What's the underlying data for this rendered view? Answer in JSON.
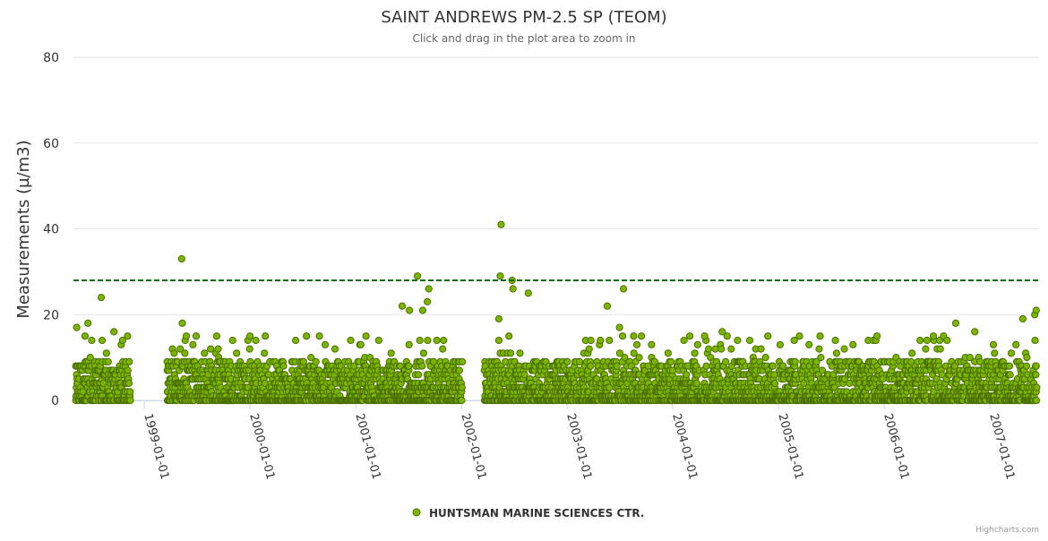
{
  "chart_data": {
    "type": "scatter",
    "title": "SAINT ANDREWS PM-2.5 SP (TEOM)",
    "subtitle": "Click and drag in the plot area to zoom in",
    "ylabel": "Measurements (µ/m3)",
    "xlabel": "",
    "ylim": [
      0,
      80
    ],
    "y_ticks": [
      "0",
      "20",
      "40",
      "60",
      "80"
    ],
    "xlim": [
      "1998-05-01",
      "2007-06-20"
    ],
    "x_ticks": [
      "1999-01-01",
      "2000-01-01",
      "2001-01-01",
      "2002-01-01",
      "2003-01-01",
      "2004-01-01",
      "2005-01-01",
      "2006-01-01",
      "2007-01-01"
    ],
    "threshold": {
      "value": 28,
      "color": "#0a6e0a",
      "style": "dashed"
    },
    "series": [
      {
        "name": "HUNTSMAN MARINE SCIENCES CTR.",
        "color": "#7cb500",
        "outline": "#4a7000",
        "notable_points": [
          {
            "x": "1998-05-12",
            "y": 17
          },
          {
            "x": "1998-06-20",
            "y": 18
          },
          {
            "x": "1998-08-05",
            "y": 24
          },
          {
            "x": "1998-09-18",
            "y": 16
          },
          {
            "x": "1999-05-10",
            "y": 33
          },
          {
            "x": "1999-05-12",
            "y": 18
          },
          {
            "x": "2001-06-10",
            "y": 22
          },
          {
            "x": "2001-07-05",
            "y": 21
          },
          {
            "x": "2001-08-02",
            "y": 29
          },
          {
            "x": "2001-08-20",
            "y": 21
          },
          {
            "x": "2001-09-05",
            "y": 23
          },
          {
            "x": "2001-09-10",
            "y": 26
          },
          {
            "x": "2002-05-15",
            "y": 29
          },
          {
            "x": "2002-05-18",
            "y": 41
          },
          {
            "x": "2002-05-10",
            "y": 19
          },
          {
            "x": "2002-06-25",
            "y": 28
          },
          {
            "x": "2002-06-28",
            "y": 26
          },
          {
            "x": "2002-08-20",
            "y": 25
          },
          {
            "x": "2003-05-20",
            "y": 22
          },
          {
            "x": "2003-07-15",
            "y": 26
          },
          {
            "x": "2003-07-01",
            "y": 17
          },
          {
            "x": "2004-04-20",
            "y": 15
          },
          {
            "x": "2004-06-20",
            "y": 16
          },
          {
            "x": "2005-09-15",
            "y": 13
          },
          {
            "x": "2006-05-05",
            "y": 14
          },
          {
            "x": "2006-06-20",
            "y": 15
          },
          {
            "x": "2006-09-05",
            "y": 18
          },
          {
            "x": "2006-11-10",
            "y": 16
          },
          {
            "x": "2007-04-25",
            "y": 19
          },
          {
            "x": "2007-06-05",
            "y": 20
          },
          {
            "x": "2007-06-10",
            "y": 21
          }
        ],
        "typical_range": [
          0,
          10
        ],
        "data_gaps": [
          [
            "1998-11-15",
            "1999-03-20"
          ],
          [
            "2002-01-05",
            "2002-03-20"
          ]
        ]
      }
    ],
    "legend": {
      "position": "bottom-center"
    },
    "credits": "Highcharts.com",
    "grid": true
  }
}
